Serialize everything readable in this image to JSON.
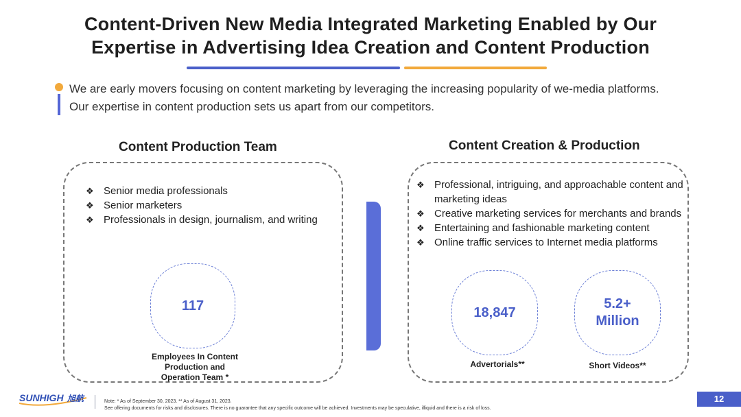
{
  "slide": {
    "title_lines": [
      "Content-Driven New Media Integrated Marketing Enabled by Our",
      "Expertise in Advertising Idea Creation and Content Production"
    ],
    "intro_lines": [
      "We are early movers focusing on content marketing by leveraging the increasing popularity of we-media platforms.",
      "Our expertise in content production sets us apart from our competitors."
    ],
    "accent_colors": {
      "blue": "#4a5fc9",
      "orange": "#f2a93b"
    },
    "left_column": {
      "heading": "Content Production Team",
      "bullets": [
        "Senior media professionals",
        "Senior marketers",
        "Professionals in design, journalism, and writing"
      ],
      "stat": {
        "value": "117",
        "caption_lines": [
          "Employees In Content",
          "Production and",
          "Operation Team *"
        ]
      }
    },
    "right_column": {
      "heading": "Content Creation & Production",
      "bullets": [
        "Professional, intriguing, and approachable content and marketing ideas",
        "Creative marketing services for merchants and brands",
        "Entertaining and fashionable marketing content",
        "Online traffic services to Internet media platforms"
      ],
      "stats": [
        {
          "value_lines": [
            "18,847"
          ],
          "caption": "Advertorials**"
        },
        {
          "value_lines": [
            "5.2+",
            "Million"
          ],
          "caption": "Short Videos**"
        }
      ]
    },
    "bullet_icon": "diamond-bullet-icon",
    "bullet_glyph": "❖",
    "footer": {
      "logo_text": "SUNHIGH",
      "logo_cjk": "旭航",
      "note_lines": [
        "Note: * As of September 30, 2023. ** As of August 31, 2023.",
        "See offering documents for risks and disclosures. There is no guarantee that any specific outcome will be achieved. Investments may be speculative, illiquid and there is a risk of loss."
      ],
      "page_number": "12"
    }
  }
}
